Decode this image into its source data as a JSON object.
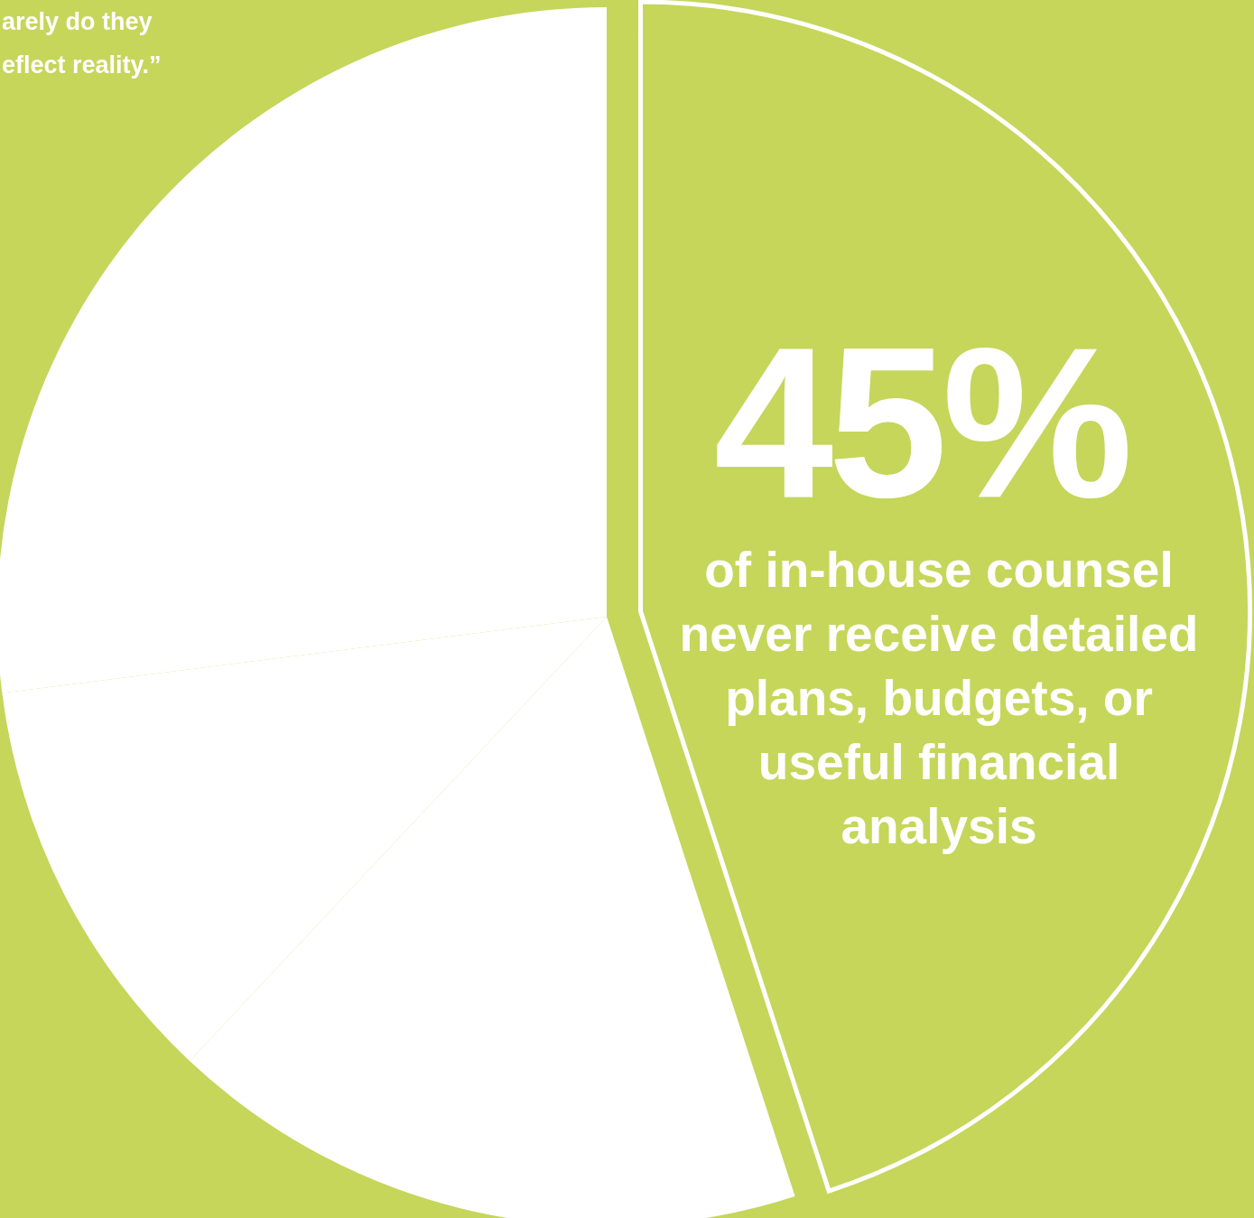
{
  "chart_data": {
    "type": "pie",
    "categories": [
      null,
      null,
      null,
      null
    ],
    "values": [
      45,
      17,
      11,
      27
    ],
    "colors": [
      "#c5d65a",
      "#ffffff",
      "#ffffff",
      "#ffffff"
    ],
    "value_labels": [
      "45%",
      null,
      null,
      null
    ],
    "annotations": [
      "arely do they\neflect reality.”",
      "of in-house counsel\nnever receive detailed\nplans, budgets, or\nuseful financial\nanalysis"
    ]
  }
}
